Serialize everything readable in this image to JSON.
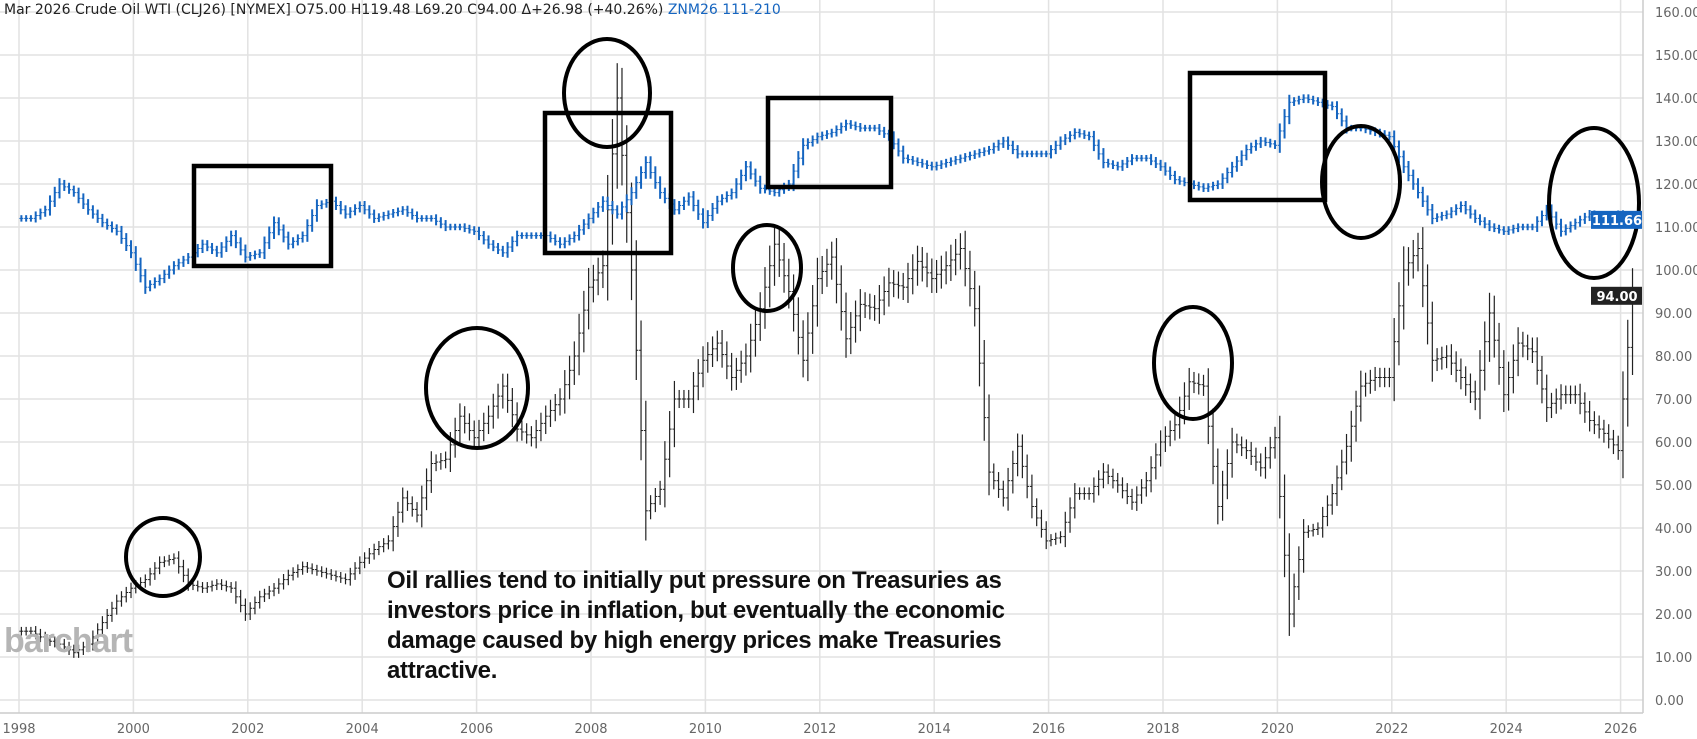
{
  "header": {
    "title": "Mar 2026 Crude Oil WTI (CLJ26) [NYMEX]",
    "ohlc": "O75.00 H119.48 L69.20 C94.00 Δ+26.98 (+40.26%)",
    "compare": "ZNM26 111-210"
  },
  "annotation": "Oil rallies tend to initially put pressure on Treasuries as investors price in inflation, but eventually the economic damage caused by high energy prices make Treasuries attractive.",
  "watermark": "barchart",
  "colors": {
    "oil": "#222222",
    "treasury": "#1565c0",
    "grid": "#dddddd"
  },
  "chart_data": {
    "type": "ohlc",
    "x_ticks": [
      "1998",
      "2000",
      "2002",
      "2004",
      "2006",
      "2008",
      "2010",
      "2012",
      "2014",
      "2016",
      "2018",
      "2020",
      "2022",
      "2024",
      "2026"
    ],
    "y_ticks": [
      "0.00",
      "10.00",
      "20.00",
      "30.00",
      "40.00",
      "50.00",
      "60.00",
      "70.00",
      "80.00",
      "90.00",
      "100.00",
      "110.00",
      "120.00",
      "130.00",
      "140.00",
      "150.00",
      "160.00"
    ],
    "ylim": [
      0,
      160
    ],
    "xlim": [
      1998,
      2026.3
    ],
    "frequency": "quarterly closes (approx.) starting 1998 Q1",
    "series": [
      {
        "name": "Crude Oil WTI (CLJ26)",
        "last_label": "94.00",
        "values": [
          16,
          14,
          13,
          11,
          13,
          18,
          23,
          26,
          28,
          32,
          33,
          27,
          26,
          27,
          26,
          20,
          24,
          26,
          29,
          31,
          30,
          29,
          28,
          32,
          35,
          37,
          47,
          43,
          55,
          56,
          66,
          61,
          66,
          73,
          63,
          61,
          66,
          70,
          80,
          96,
          101,
          140,
          100,
          44,
          49,
          70,
          70,
          79,
          83,
          75,
          80,
          91,
          106,
          95,
          79,
          98,
          103,
          84,
          92,
          91,
          97,
          96,
          102,
          98,
          101,
          105,
          91,
          53,
          47,
          59,
          45,
          37,
          38,
          48,
          48,
          53,
          50,
          46,
          51,
          60,
          64,
          74,
          73,
          45,
          60,
          58,
          54,
          61,
          20,
          39,
          40,
          48,
          59,
          73,
          75,
          75,
          100,
          105,
          79,
          80,
          75,
          70,
          90,
          71,
          83,
          81,
          68,
          71,
          71,
          65,
          62,
          58,
          94
        ]
      },
      {
        "name": "ZNM26 (10-Yr T-Note)",
        "last_label": "111.66",
        "values": [
          112,
          114,
          120,
          118,
          114,
          111,
          109,
          104,
          96,
          98,
          101,
          103,
          106,
          104,
          108,
          103,
          104,
          111,
          106,
          108,
          115,
          116,
          113,
          115,
          112,
          113,
          114,
          112,
          112,
          110,
          110,
          109,
          106,
          104,
          108,
          108,
          108,
          106,
          108,
          112,
          116,
          113,
          118,
          125,
          118,
          114,
          117,
          111,
          116,
          118,
          124,
          119,
          118,
          120,
          129,
          131,
          132,
          134,
          133,
          133,
          131,
          126,
          125,
          124,
          125,
          126,
          127,
          128,
          130,
          127,
          127,
          127,
          130,
          132,
          131,
          125,
          124,
          126,
          126,
          124,
          121,
          120,
          119,
          120,
          124,
          128,
          130,
          129,
          139,
          140,
          139,
          138,
          133,
          133,
          132,
          131,
          124,
          118,
          112,
          113,
          115,
          112,
          110,
          109,
          110,
          110,
          114,
          109,
          111,
          113,
          112,
          113,
          111.66
        ]
      }
    ],
    "annotations": {
      "boxes": 4,
      "circles": 7
    }
  }
}
